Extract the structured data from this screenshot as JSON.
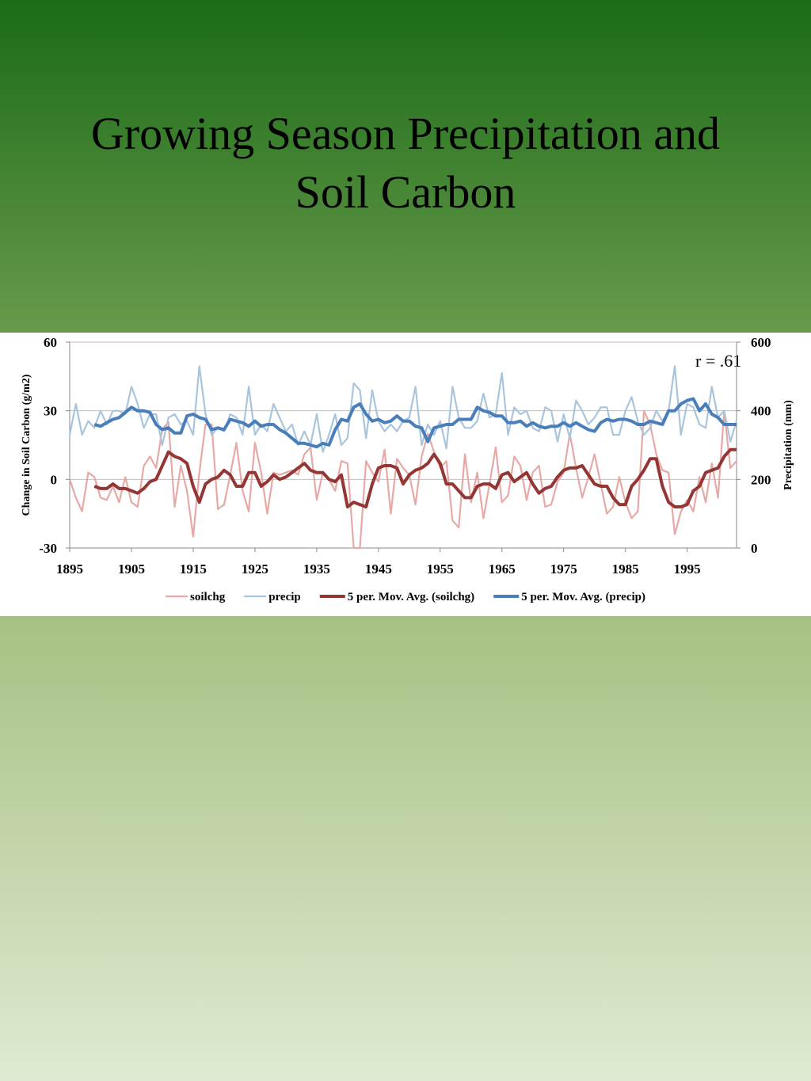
{
  "title": "Growing Season Precipitation and Soil Carbon",
  "chart_data": {
    "type": "line",
    "annotation": "r = .61",
    "y_label": "Change in Soil Carbon (g/m2)",
    "y2_label": "Precipitation (mm)",
    "x": [
      1895,
      1896,
      1897,
      1898,
      1899,
      1900,
      1901,
      1902,
      1903,
      1904,
      1905,
      1906,
      1907,
      1908,
      1909,
      1910,
      1911,
      1912,
      1913,
      1914,
      1915,
      1916,
      1917,
      1918,
      1919,
      1920,
      1921,
      1922,
      1923,
      1924,
      1925,
      1926,
      1927,
      1928,
      1929,
      1930,
      1931,
      1932,
      1933,
      1934,
      1935,
      1936,
      1937,
      1938,
      1939,
      1940,
      1941,
      1942,
      1943,
      1944,
      1945,
      1946,
      1947,
      1948,
      1949,
      1950,
      1951,
      1952,
      1953,
      1954,
      1955,
      1956,
      1957,
      1958,
      1959,
      1960,
      1961,
      1962,
      1963,
      1964,
      1965,
      1966,
      1967,
      1968,
      1969,
      1970,
      1971,
      1972,
      1973,
      1974,
      1975,
      1976,
      1977,
      1978,
      1979,
      1980,
      1981,
      1982,
      1983,
      1984,
      1985,
      1986,
      1987,
      1988,
      1989,
      1990,
      1991,
      1992,
      1993,
      1994,
      1995,
      1996,
      1997,
      1998,
      1999,
      2000,
      2001,
      2002,
      2003
    ],
    "xlim": [
      1895,
      2003
    ],
    "xticks": [
      1895,
      1905,
      1915,
      1925,
      1935,
      1945,
      1955,
      1965,
      1975,
      1985,
      1995
    ],
    "ylim": [
      -30,
      60
    ],
    "yticks": [
      -30,
      0,
      30,
      60
    ],
    "y2lim": [
      0,
      600
    ],
    "y2ticks": [
      0,
      200,
      400,
      600
    ],
    "grid": true,
    "legend": "bottom",
    "series": [
      {
        "name": "soilchg",
        "color": "#e6a9a6",
        "line_width": 2.2,
        "values": [
          0,
          -8,
          -14,
          3,
          1,
          -8,
          -9,
          -3,
          -10,
          1,
          -10,
          -12,
          6,
          10,
          5,
          22,
          25,
          -12,
          6,
          -5,
          -25,
          3,
          24,
          24,
          -13,
          -11,
          2,
          16,
          -5,
          -14,
          16,
          3,
          -15,
          3,
          2,
          3,
          4,
          2,
          11,
          14,
          -9,
          3,
          0,
          -5,
          8,
          7,
          -30,
          -30,
          8,
          3,
          -1,
          13,
          -15,
          9,
          5,
          2,
          -11,
          10,
          20,
          12,
          5,
          8,
          -18,
          -21,
          11,
          -10,
          3,
          -17,
          -2,
          14,
          -10,
          -7,
          10,
          6,
          -9,
          3,
          6,
          -12,
          -11,
          -1,
          3,
          20,
          5,
          -8,
          1,
          11,
          -2,
          -15,
          -12,
          1,
          -10,
          -17,
          -14,
          30,
          24,
          11,
          4,
          3,
          -24,
          -14,
          -9,
          -14,
          1,
          -10,
          7,
          -8,
          30,
          5,
          8
        ]
      },
      {
        "name": "precip",
        "color": "#a9c5de",
        "line_width": 2.2,
        "axis": "y2",
        "values": [
          330,
          420,
          330,
          370,
          350,
          400,
          360,
          400,
          400,
          390,
          470,
          420,
          350,
          390,
          390,
          300,
          380,
          390,
          360,
          370,
          330,
          530,
          390,
          330,
          350,
          340,
          390,
          380,
          330,
          470,
          330,
          360,
          340,
          420,
          380,
          340,
          360,
          300,
          340,
          300,
          390,
          280,
          330,
          390,
          300,
          320,
          480,
          460,
          320,
          460,
          370,
          340,
          360,
          340,
          370,
          380,
          470,
          300,
          360,
          330,
          370,
          290,
          470,
          380,
          350,
          350,
          370,
          450,
          380,
          390,
          510,
          330,
          410,
          390,
          400,
          350,
          340,
          410,
          400,
          310,
          390,
          320,
          430,
          400,
          360,
          380,
          410,
          410,
          330,
          330,
          400,
          440,
          370,
          330,
          350,
          400,
          370,
          400,
          530,
          330,
          420,
          410,
          360,
          350,
          470,
          380,
          400,
          310,
          370
        ]
      },
      {
        "name": "5 per. Mov. Avg. (soilchg)",
        "color": "#943634",
        "line_width": 4,
        "values": [
          null,
          null,
          null,
          null,
          -3,
          -4,
          -4,
          -2,
          -4,
          -4,
          -5,
          -6,
          -4,
          -1,
          0,
          6,
          12,
          10,
          9,
          7,
          -3,
          -10,
          -2,
          0,
          1,
          4,
          2,
          -3,
          -3,
          3,
          3,
          -3,
          -1,
          2,
          0,
          1,
          3,
          5,
          7,
          4,
          3,
          3,
          0,
          -1,
          2,
          -12,
          -10,
          -11,
          -12,
          -2,
          5,
          6,
          6,
          5,
          -2,
          2,
          4,
          5,
          7,
          11,
          7,
          -2,
          -2,
          -5,
          -8,
          -8,
          -3,
          -2,
          -2,
          -4,
          2,
          3,
          -1,
          1,
          3,
          -2,
          -6,
          -4,
          -3,
          1,
          4,
          5,
          5,
          6,
          2,
          -2,
          -3,
          -3,
          -8,
          -11,
          -11,
          -3,
          0,
          4,
          9,
          9,
          -3,
          -10,
          -12,
          -12,
          -11,
          -5,
          -3,
          3,
          4,
          5,
          10,
          13,
          13
        ]
      },
      {
        "name": "5 per. Mov. Avg. (precip)",
        "color": "#4a7ebb",
        "line_width": 4,
        "axis": "y2",
        "values": [
          null,
          null,
          null,
          null,
          360,
          355,
          365,
          375,
          380,
          395,
          410,
          400,
          400,
          395,
          360,
          345,
          350,
          335,
          335,
          385,
          390,
          380,
          375,
          345,
          350,
          345,
          375,
          370,
          365,
          355,
          370,
          355,
          360,
          360,
          345,
          335,
          320,
          305,
          305,
          300,
          295,
          305,
          300,
          345,
          375,
          370,
          410,
          420,
          390,
          370,
          375,
          365,
          370,
          385,
          370,
          370,
          355,
          350,
          310,
          350,
          355,
          360,
          360,
          375,
          375,
          375,
          410,
          400,
          395,
          385,
          385,
          365,
          365,
          370,
          355,
          365,
          355,
          350,
          355,
          355,
          365,
          355,
          365,
          355,
          345,
          340,
          365,
          375,
          370,
          375,
          375,
          370,
          360,
          360,
          370,
          365,
          360,
          400,
          400,
          420,
          430,
          435,
          400,
          420,
          390,
          380,
          360,
          360,
          360
        ]
      }
    ]
  }
}
